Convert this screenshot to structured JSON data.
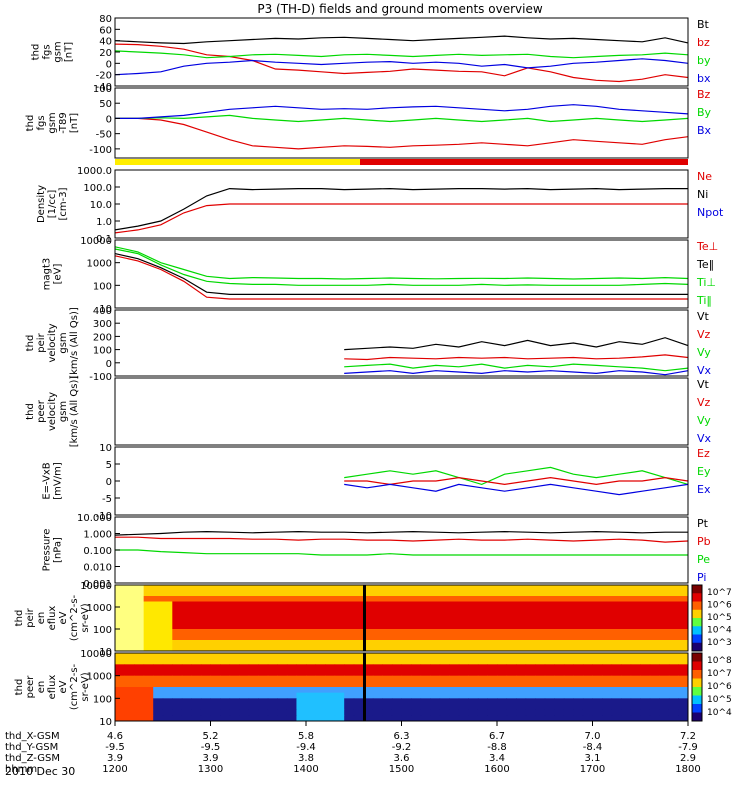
{
  "title": "P3 (TH-D) fields and ground moments overview",
  "date": "2010 Dec 30",
  "colors": {
    "black": "#000000",
    "red": "#e00000",
    "green": "#00d800",
    "blue": "#0000e0",
    "yellow": "#ffee00",
    "magenta": "#ff00ff"
  },
  "footer": {
    "row_labels": [
      "thd_X-GSM",
      "thd_Y-GSM",
      "thd_Z-GSM",
      "hhmm"
    ],
    "columns": [
      [
        "4.6",
        "-9.5",
        "3.9",
        "1200"
      ],
      [
        "5.2",
        "-9.5",
        "3.9",
        "1300"
      ],
      [
        "5.8",
        "-9.4",
        "3.8",
        "1400"
      ],
      [
        "6.3",
        "-9.2",
        "3.6",
        "1500"
      ],
      [
        "6.7",
        "-8.8",
        "3.4",
        "1600"
      ],
      [
        "7.0",
        "-8.4",
        "3.1",
        "1700"
      ],
      [
        "7.2",
        "-7.9",
        "2.9",
        "1800"
      ]
    ]
  },
  "chart_data": [
    {
      "type": "line",
      "ylabel_lines": [
        "thd",
        "fgs",
        "gsm",
        "[nT]"
      ],
      "ylim": [
        -40,
        80
      ],
      "yticks": [
        "80",
        "60",
        "40",
        "20",
        "0",
        "-20",
        "-40"
      ],
      "ytick_vals": [
        80,
        60,
        40,
        20,
        0,
        -20,
        -40
      ],
      "legend": [
        [
          "Bt",
          "black"
        ],
        [
          "bz",
          "red"
        ],
        [
          "by",
          "green"
        ],
        [
          "bx",
          "blue"
        ]
      ],
      "series": [
        {
          "name": "Bt",
          "values": [
            40,
            38,
            36,
            35,
            38,
            40,
            42,
            44,
            43,
            45,
            46,
            44,
            42,
            40,
            42,
            44,
            46,
            48,
            45,
            43,
            44,
            42,
            40,
            38,
            45,
            36
          ]
        },
        {
          "name": "bz",
          "values": [
            34,
            33,
            30,
            25,
            15,
            12,
            5,
            -10,
            -12,
            -15,
            -18,
            -16,
            -14,
            -10,
            -12,
            -14,
            -15,
            -22,
            -8,
            -15,
            -25,
            -30,
            -32,
            -28,
            -20,
            -25
          ]
        },
        {
          "name": "by",
          "values": [
            22,
            20,
            18,
            15,
            10,
            12,
            15,
            16,
            14,
            12,
            15,
            16,
            14,
            12,
            14,
            16,
            14,
            15,
            16,
            12,
            10,
            12,
            14,
            15,
            18,
            15
          ]
        },
        {
          "name": "bx",
          "values": [
            -20,
            -18,
            -15,
            -5,
            0,
            2,
            5,
            2,
            0,
            -2,
            0,
            2,
            3,
            0,
            2,
            0,
            -5,
            -2,
            -8,
            -5,
            0,
            2,
            5,
            8,
            5,
            0
          ]
        }
      ]
    },
    {
      "type": "line",
      "ylabel_lines": [
        "thd",
        "fgs",
        "gsm",
        "-T89",
        "[nT]"
      ],
      "ylim": [
        -130,
        100
      ],
      "yticks": [
        "100",
        "50",
        "0",
        "-50",
        "-100"
      ],
      "ytick_vals": [
        100,
        50,
        0,
        -50,
        -100
      ],
      "legend": [
        [
          "Bz",
          "red"
        ],
        [
          "By",
          "green"
        ],
        [
          "Bx",
          "blue"
        ]
      ],
      "series": [
        {
          "name": "Bz",
          "values": [
            0,
            0,
            -5,
            -20,
            -45,
            -70,
            -90,
            -95,
            -100,
            -95,
            -90,
            -92,
            -95,
            -90,
            -88,
            -85,
            -80,
            -85,
            -90,
            -80,
            -70,
            -75,
            -80,
            -85,
            -70,
            -60
          ]
        },
        {
          "name": "By",
          "values": [
            0,
            0,
            2,
            0,
            5,
            10,
            0,
            -5,
            -10,
            -5,
            0,
            -5,
            -10,
            -5,
            0,
            -5,
            -10,
            -5,
            0,
            -10,
            -5,
            0,
            -5,
            -10,
            -5,
            0
          ]
        },
        {
          "name": "Bx",
          "values": [
            0,
            0,
            5,
            10,
            20,
            30,
            35,
            40,
            35,
            30,
            32,
            30,
            35,
            38,
            40,
            35,
            30,
            25,
            30,
            40,
            45,
            40,
            30,
            25,
            20,
            15
          ]
        }
      ]
    },
    {
      "type": "log_line",
      "ylabel_lines": [
        "Density",
        "[1/cc]",
        "[cm-3]"
      ],
      "ylim": [
        0.1,
        1000
      ],
      "yticks": [
        "1000.0",
        "100.0",
        "10.0",
        "1.0",
        "0.1"
      ],
      "ytick_vals": [
        1000,
        100,
        10,
        1,
        0.1
      ],
      "legend": [
        [
          "Ne",
          "red"
        ],
        [
          "Ni",
          "black"
        ],
        [
          "Npot",
          "blue"
        ]
      ],
      "series": [
        {
          "name": "Ni",
          "values": [
            0.3,
            0.5,
            1,
            5,
            30,
            80,
            70,
            75,
            80,
            80,
            70,
            75,
            80,
            70,
            75,
            80,
            80,
            75,
            80,
            70,
            75,
            80,
            70,
            75,
            80,
            80
          ]
        },
        {
          "name": "Ne",
          "values": [
            0.2,
            0.3,
            0.6,
            3,
            8,
            10,
            10,
            10,
            10,
            10,
            10,
            10,
            10,
            10,
            10,
            10,
            10,
            10,
            10,
            10,
            10,
            10,
            10,
            10,
            10,
            10
          ]
        }
      ]
    },
    {
      "type": "log_line",
      "ylabel_lines": [
        "magt3",
        "[eV]"
      ],
      "ylim": [
        10,
        10000
      ],
      "yticks": [
        "10000",
        "1000",
        "100",
        "10"
      ],
      "ytick_vals": [
        10000,
        1000,
        100,
        10
      ],
      "legend": [
        [
          "Te⊥",
          "red"
        ],
        [
          "Te‖",
          "black"
        ],
        [
          "Ti⊥",
          "green"
        ],
        [
          "Ti‖",
          "green"
        ]
      ],
      "series": [
        {
          "name": "Ti⊥",
          "values": [
            5000,
            3000,
            1000,
            500,
            250,
            200,
            220,
            210,
            200,
            200,
            190,
            200,
            210,
            200,
            195,
            200,
            205,
            200,
            210,
            200,
            190,
            200,
            210,
            200,
            220,
            200
          ]
        },
        {
          "name": "Ti‖",
          "values": [
            4000,
            2500,
            800,
            300,
            150,
            120,
            110,
            110,
            100,
            100,
            100,
            100,
            110,
            100,
            100,
            100,
            110,
            100,
            105,
            100,
            100,
            100,
            100,
            110,
            120,
            110
          ]
        },
        {
          "name": "Te‖",
          "values": [
            2500,
            1500,
            600,
            200,
            50,
            40,
            40,
            40,
            40,
            40,
            40,
            40,
            40,
            40,
            40,
            40,
            40,
            40,
            40,
            40,
            40,
            40,
            40,
            40,
            40,
            40
          ]
        },
        {
          "name": "Te⊥",
          "values": [
            2000,
            1200,
            500,
            150,
            30,
            25,
            25,
            25,
            25,
            25,
            25,
            25,
            25,
            25,
            25,
            25,
            25,
            25,
            25,
            25,
            25,
            25,
            25,
            25,
            25,
            25
          ]
        }
      ]
    },
    {
      "type": "line",
      "ylabel_lines": [
        "thd",
        "peir",
        "velocity",
        "gsm",
        "[km/s (All Qs)]"
      ],
      "ylim": [
        -100,
        400
      ],
      "yticks": [
        "400",
        "300",
        "200",
        "100",
        "0",
        "-100"
      ],
      "ytick_vals": [
        400,
        300,
        200,
        100,
        0,
        -100
      ],
      "legend": [
        [
          "Vt",
          "black"
        ],
        [
          "Vz",
          "red"
        ],
        [
          "Vy",
          "green"
        ],
        [
          "Vx",
          "blue"
        ]
      ],
      "start_index": 10,
      "series": [
        {
          "name": "Vt",
          "values": [
            null,
            null,
            null,
            null,
            null,
            null,
            null,
            null,
            null,
            null,
            100,
            110,
            120,
            110,
            140,
            120,
            160,
            130,
            170,
            130,
            150,
            120,
            160,
            140,
            190,
            130
          ]
        },
        {
          "name": "Vz",
          "values": [
            null,
            null,
            null,
            null,
            null,
            null,
            null,
            null,
            null,
            null,
            30,
            25,
            40,
            35,
            30,
            40,
            35,
            40,
            30,
            35,
            40,
            30,
            35,
            45,
            60,
            40
          ]
        },
        {
          "name": "Vy",
          "values": [
            null,
            null,
            null,
            null,
            null,
            null,
            null,
            null,
            null,
            null,
            -30,
            -20,
            -10,
            -40,
            -20,
            -30,
            -10,
            -40,
            -20,
            -30,
            -10,
            -20,
            -30,
            -40,
            -60,
            -40
          ]
        },
        {
          "name": "Vx",
          "values": [
            null,
            null,
            null,
            null,
            null,
            null,
            null,
            null,
            null,
            null,
            -80,
            -70,
            -60,
            -80,
            -60,
            -70,
            -80,
            -60,
            -70,
            -60,
            -70,
            -80,
            -60,
            -70,
            -90,
            -60
          ]
        }
      ]
    },
    {
      "type": "line",
      "ylabel_lines": [
        "thd",
        "peer",
        "velocity",
        "gsm",
        "[km/s (All Qs)]"
      ],
      "ylim": [
        -100,
        400
      ],
      "yticks": [],
      "ytick_vals": [],
      "legend": [
        [
          "Vt",
          "black"
        ],
        [
          "Vz",
          "red"
        ],
        [
          "Vy",
          "green"
        ],
        [
          "Vx",
          "blue"
        ]
      ],
      "series": []
    },
    {
      "type": "line",
      "ylabel_lines": [
        "E=-VxB",
        "[mV/m]"
      ],
      "ylim": [
        -10,
        10
      ],
      "yticks": [
        "10",
        "5",
        "0",
        "-5",
        "-10"
      ],
      "ytick_vals": [
        10,
        5,
        0,
        -5,
        -10
      ],
      "legend": [
        [
          "Ez",
          "red"
        ],
        [
          "Ey",
          "green"
        ],
        [
          "Ex",
          "blue"
        ]
      ],
      "series": [
        {
          "name": "Ey",
          "values": [
            null,
            null,
            null,
            null,
            null,
            null,
            null,
            null,
            null,
            null,
            1,
            2,
            3,
            2,
            3,
            1,
            -1,
            2,
            3,
            4,
            2,
            1,
            2,
            3,
            1,
            -1
          ]
        },
        {
          "name": "Ez",
          "values": [
            null,
            null,
            null,
            null,
            null,
            null,
            null,
            null,
            null,
            null,
            0,
            0,
            -1,
            0,
            0,
            1,
            0,
            -1,
            0,
            1,
            0,
            -1,
            0,
            0,
            1,
            0
          ]
        },
        {
          "name": "Ex",
          "values": [
            null,
            null,
            null,
            null,
            null,
            null,
            null,
            null,
            null,
            null,
            -1,
            -2,
            -1,
            -2,
            -3,
            -1,
            -2,
            -3,
            -2,
            -1,
            -2,
            -3,
            -4,
            -3,
            -2,
            -1
          ]
        }
      ]
    },
    {
      "type": "log_line",
      "ylabel_lines": [
        "Pressure",
        "[nPa]"
      ],
      "ylim": [
        0.001,
        10
      ],
      "yticks": [
        "10.000",
        "1.000",
        "0.100",
        "0.010",
        "0.001"
      ],
      "ytick_vals": [
        10,
        1,
        0.1,
        0.01,
        0.001
      ],
      "legend": [
        [
          "Pt",
          "black"
        ],
        [
          "Pb",
          "red"
        ],
        [
          "Pe",
          "green"
        ],
        [
          "Pi",
          "blue"
        ]
      ],
      "series": [
        {
          "name": "Pt",
          "values": [
            0.8,
            0.9,
            1,
            1.2,
            1.3,
            1.2,
            1.1,
            1.2,
            1.3,
            1.2,
            1.2,
            1.1,
            1.2,
            1.3,
            1.2,
            1.1,
            1.2,
            1.3,
            1.2,
            1.1,
            1.2,
            1.3,
            1.2,
            1.1,
            1.2,
            1.2
          ]
        },
        {
          "name": "Pb",
          "values": [
            0.6,
            0.6,
            0.5,
            0.5,
            0.5,
            0.5,
            0.45,
            0.45,
            0.4,
            0.45,
            0.45,
            0.4,
            0.4,
            0.35,
            0.4,
            0.45,
            0.4,
            0.4,
            0.45,
            0.4,
            0.35,
            0.4,
            0.45,
            0.4,
            0.3,
            0.35
          ]
        },
        {
          "name": "Pe",
          "values": [
            0.1,
            0.1,
            0.08,
            0.07,
            0.06,
            0.06,
            0.06,
            0.06,
            0.06,
            0.05,
            0.05,
            0.05,
            0.06,
            0.05,
            0.05,
            0.05,
            0.05,
            0.05,
            0.05,
            0.05,
            0.05,
            0.05,
            0.05,
            0.05,
            0.05,
            0.05
          ]
        }
      ]
    },
    {
      "type": "heatmap",
      "ylabel_lines": [
        "thd",
        "peir",
        "en",
        "eflux",
        "eV",
        "(cm^2-s-",
        "sr-eV)"
      ],
      "ylim": [
        10,
        10000
      ],
      "yticks": [
        "10000",
        "1000",
        "100",
        "10"
      ],
      "ytick_vals": [
        10000,
        1000,
        100,
        10
      ],
      "colorbar_ticks": [
        "10^7",
        "10^6",
        "10^5",
        "10^4",
        "10^3"
      ]
    },
    {
      "type": "heatmap",
      "ylabel_lines": [
        "thd",
        "peer",
        "en",
        "eflux",
        "eV",
        "(cm^2-s-",
        "sr-eV)"
      ],
      "ylim": [
        10,
        10000
      ],
      "yticks": [
        "10000",
        "1000",
        "100",
        "10"
      ],
      "ytick_vals": [
        10000,
        1000,
        100,
        10
      ],
      "colorbar_ticks": [
        "10^8",
        "10^7",
        "10^6",
        "10^5",
        "10^4"
      ]
    }
  ]
}
